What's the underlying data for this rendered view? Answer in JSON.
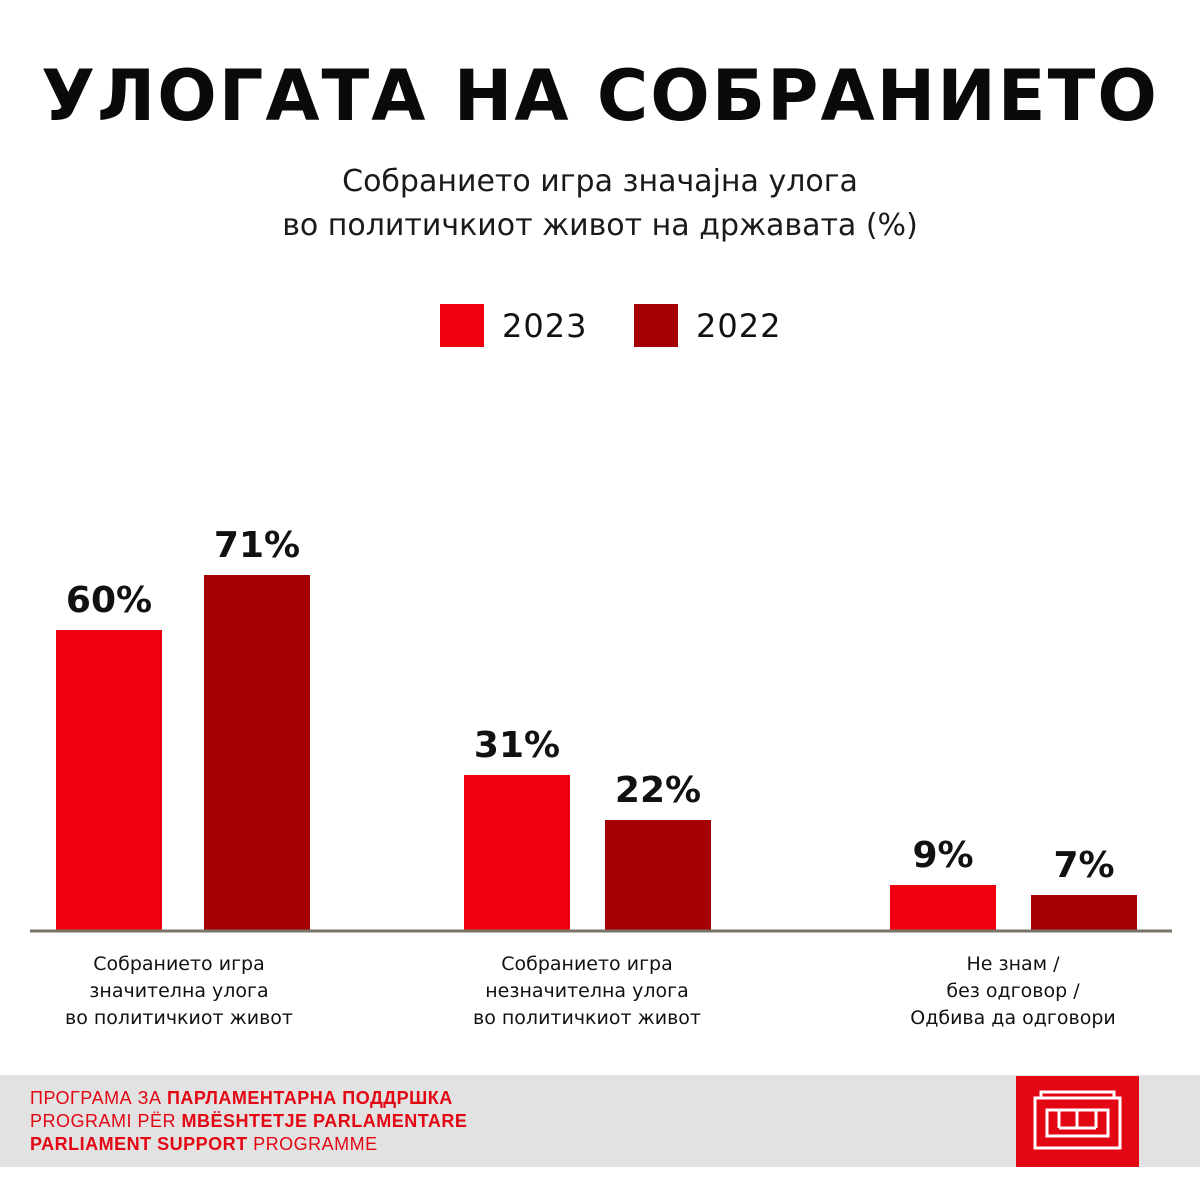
{
  "title": "УЛОГАТА НА СОБРАНИЕТО",
  "subtitle": {
    "line1": "Собранието игра значајна улога",
    "line2": "во политичкиот живот на државата (%)"
  },
  "colors": {
    "y2023": "#f0000f",
    "y2022": "#a50005",
    "axis": "#7a7468",
    "footer_bg": "#e2e2e2",
    "brand": "#e30613"
  },
  "chart_data": {
    "type": "bar",
    "title": "Собранието игра значајна улога во политичкиот живот на државата (%)",
    "unit": "%",
    "legend": "top-center",
    "grid": false,
    "ylim": [
      0,
      100
    ],
    "series": [
      {
        "name": "2023",
        "values": [
          60,
          31,
          9
        ],
        "labels": [
          "60%",
          "31%",
          "9%"
        ]
      },
      {
        "name": "2022",
        "values": [
          71,
          22,
          7
        ],
        "labels": [
          "71%",
          "22%",
          "7%"
        ]
      }
    ],
    "categories": [
      [
        "Собранието игра",
        "значителна улога",
        "во политичкиот живот"
      ],
      [
        "Собранието игра",
        "незначителна улога",
        "во политичкиот живот"
      ],
      [
        "Не знам /",
        "без одговор /",
        "Одбива да одговори"
      ]
    ]
  },
  "footer": {
    "line1": {
      "plain": "ПРОГРАМА ЗА ",
      "bold": "ПАРЛАМЕНТАРНА ПОДДРШКА"
    },
    "line2": {
      "plain": "PROGRAMI PËR ",
      "bold": "MBËSHTETJE PARLAMENTARE"
    },
    "line3": {
      "bold": "PARLIAMENT SUPPORT",
      "plain": " PROGRAMME"
    },
    "logo_icon": "parliament-building-icon"
  }
}
